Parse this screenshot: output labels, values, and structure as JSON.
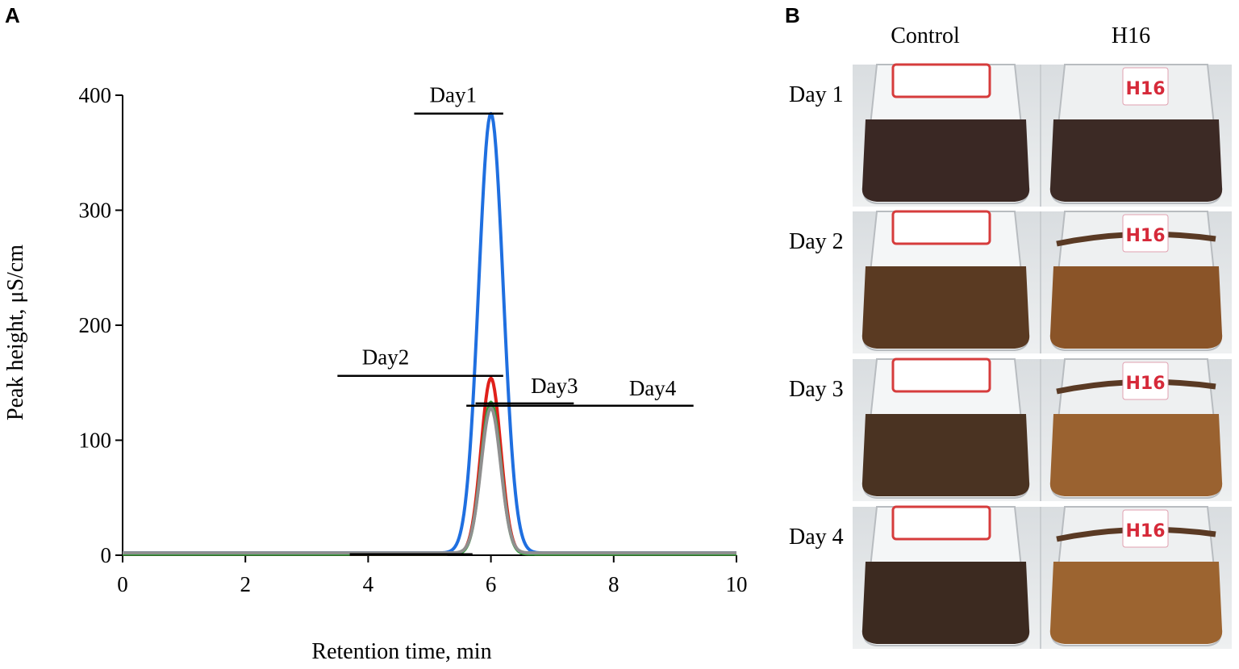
{
  "panels": {
    "a": "A",
    "b": "B"
  },
  "chart_data": {
    "type": "line",
    "title": "",
    "xlabel": "Retention time, min",
    "ylabel": "Peak height, μS/cm",
    "xlim": [
      0,
      10
    ],
    "ylim": [
      0,
      400
    ],
    "xticks": [
      0,
      2,
      4,
      6,
      8,
      10
    ],
    "yticks": [
      0,
      100,
      200,
      300,
      400
    ],
    "grid": false,
    "legend": "none",
    "series": [
      {
        "label": "Day1",
        "color": "#1f6fe0",
        "baseline": 2,
        "peak_x": 6.0,
        "peak_y": 384,
        "sigma": 0.2,
        "label_line": {
          "x1": 4.75,
          "x2": 6.2,
          "y": 384
        },
        "label_at": [
          5.0,
          394
        ]
      },
      {
        "label": "Day2",
        "color": "#e0201a",
        "baseline": 1,
        "peak_x": 6.0,
        "peak_y": 154,
        "sigma": 0.16,
        "label_line": {
          "x1": 3.5,
          "x2": 6.2,
          "y": 156
        },
        "label_at": [
          3.9,
          166
        ]
      },
      {
        "label": "Day3",
        "color": "#2e9e3a",
        "baseline": 1,
        "peak_x": 6.0,
        "peak_y": 133,
        "sigma": 0.16,
        "label_line": {
          "x1": 5.75,
          "x2": 7.35,
          "y": 132
        },
        "label_at": [
          6.65,
          141
        ]
      },
      {
        "label": "Day4",
        "color": "#8f8f8f",
        "baseline": 2,
        "peak_x": 6.0,
        "peak_y": 128,
        "sigma": 0.16,
        "label_line": {
          "x1": 5.6,
          "x2": 9.3,
          "y": 130
        },
        "label_at": [
          8.25,
          139
        ]
      }
    ]
  },
  "photos": {
    "columns": [
      "Control",
      "H16"
    ],
    "rows": [
      {
        "label": "Day 1",
        "tag": "H16",
        "control_liquid": "#3a2824",
        "h16_liquid": "#3c2a25"
      },
      {
        "label": "Day 2",
        "tag": "H16",
        "control_liquid": "#5a3a22",
        "h16_liquid": "#8a5428"
      },
      {
        "label": "Day 3",
        "tag": "H16",
        "control_liquid": "#4a3322",
        "h16_liquid": "#9a6230"
      },
      {
        "label": "Day 4",
        "tag": "H16",
        "control_liquid": "#3c2a20",
        "h16_liquid": "#9c6430"
      }
    ]
  }
}
